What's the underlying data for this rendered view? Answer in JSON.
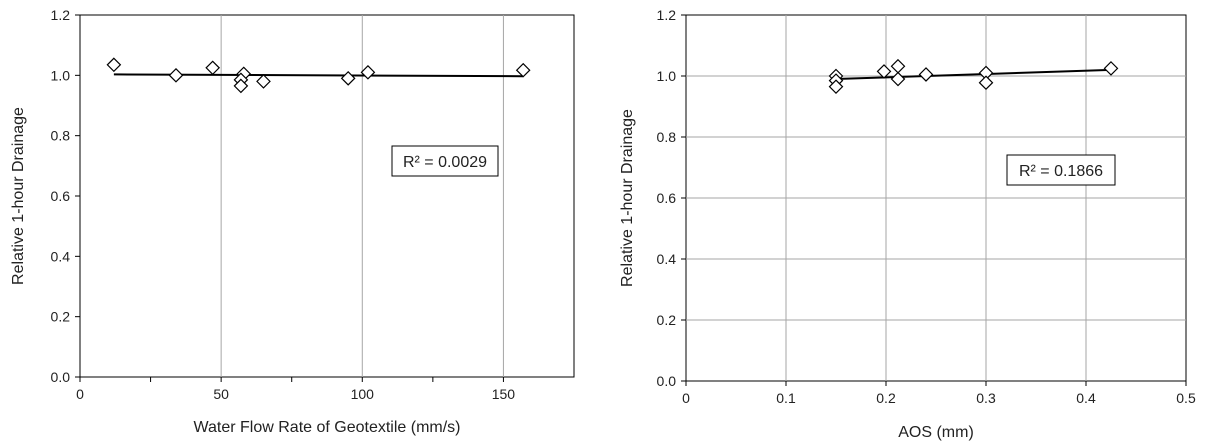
{
  "chart_data": [
    {
      "type": "scatter",
      "title": "",
      "xlabel": "Water Flow Rate of Geotextile (mm/s)",
      "ylabel": "Relative 1-hour Drainage",
      "xlim": [
        0,
        175
      ],
      "ylim": [
        0,
        1.2
      ],
      "x_ticks": [
        0,
        50,
        100,
        150
      ],
      "x_tick_labels": [
        "0",
        "50",
        "100",
        "150"
      ],
      "y_ticks": [
        0,
        0.2,
        0.4,
        0.6,
        0.8,
        1.0,
        1.2
      ],
      "y_tick_labels": [
        "0.0",
        "0.2",
        "0.4",
        "0.6",
        "0.8",
        "1.0",
        "1.2"
      ],
      "grid": "vertical",
      "marker": "diamond",
      "points": [
        {
          "x": 12,
          "y": 1.035
        },
        {
          "x": 34,
          "y": 1.0
        },
        {
          "x": 47,
          "y": 1.025
        },
        {
          "x": 58,
          "y": 1.005
        },
        {
          "x": 57,
          "y": 0.985
        },
        {
          "x": 57,
          "y": 0.965
        },
        {
          "x": 65,
          "y": 0.98
        },
        {
          "x": 95,
          "y": 0.99
        },
        {
          "x": 102,
          "y": 1.01
        },
        {
          "x": 157,
          "y": 1.017
        }
      ],
      "trendline": {
        "x": [
          12,
          157
        ],
        "y": [
          1.003,
          0.997
        ]
      },
      "annotation": "R² = 0.0029"
    },
    {
      "type": "scatter",
      "title": "",
      "xlabel": "AOS (mm)",
      "ylabel": "Relative 1-hour Drainage",
      "xlim": [
        0,
        0.5
      ],
      "ylim": [
        0,
        1.2
      ],
      "x_ticks": [
        0,
        0.1,
        0.2,
        0.3,
        0.4,
        0.5
      ],
      "x_tick_labels": [
        "0",
        "0.1",
        "0.2",
        "0.3",
        "0.4",
        "0.5"
      ],
      "y_ticks": [
        0,
        0.2,
        0.4,
        0.6,
        0.8,
        1.0,
        1.2
      ],
      "y_tick_labels": [
        "0.0",
        "0.2",
        "0.4",
        "0.6",
        "0.8",
        "1.0",
        "1.2"
      ],
      "grid": "both",
      "marker": "diamond",
      "points": [
        {
          "x": 0.15,
          "y": 1.0
        },
        {
          "x": 0.15,
          "y": 0.985
        },
        {
          "x": 0.15,
          "y": 0.965
        },
        {
          "x": 0.198,
          "y": 1.015
        },
        {
          "x": 0.212,
          "y": 1.032
        },
        {
          "x": 0.212,
          "y": 0.99
        },
        {
          "x": 0.24,
          "y": 1.005
        },
        {
          "x": 0.3,
          "y": 1.01
        },
        {
          "x": 0.3,
          "y": 0.978
        },
        {
          "x": 0.425,
          "y": 1.025
        }
      ],
      "trendline": {
        "x": [
          0.15,
          0.425
        ],
        "y": [
          0.99,
          1.02
        ]
      },
      "annotation": "R² = 0.1866"
    }
  ]
}
